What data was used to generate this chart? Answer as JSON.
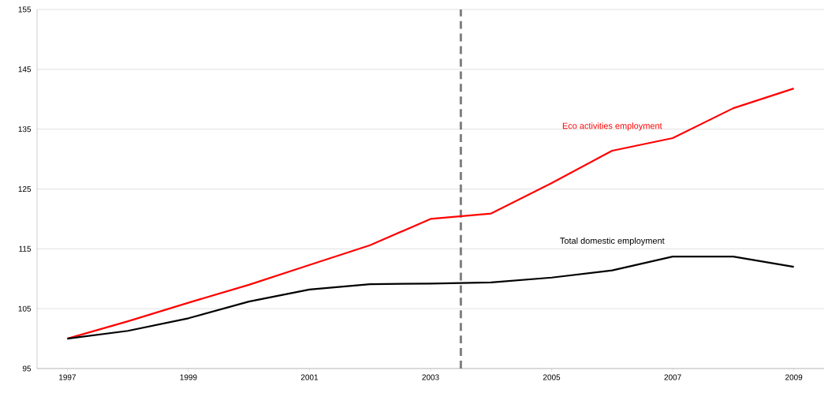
{
  "chart_data": {
    "type": "line",
    "x": [
      1997,
      1998,
      1999,
      2000,
      2001,
      2002,
      2003,
      2004,
      2005,
      2006,
      2007,
      2008,
      2009
    ],
    "series": [
      {
        "name": "Eco activities employment",
        "color": "#ff0000",
        "values": [
          100,
          102.9,
          106,
          109,
          112.3,
          115.6,
          120,
          120.9,
          126,
          131.4,
          133.5,
          138.5,
          141.8
        ]
      },
      {
        "name": "Total domestic employment",
        "color": "#000000",
        "values": [
          100,
          101.3,
          103.4,
          106.2,
          108.2,
          109.1,
          109.2,
          109.4,
          110.2,
          111.4,
          113.7,
          113.7,
          112
        ]
      }
    ],
    "xlim": [
      1996.5,
      2009.5
    ],
    "xticks": [
      1997,
      1999,
      2001,
      2003,
      2005,
      2007,
      2009
    ],
    "ylim": [
      95,
      155
    ],
    "yticks": [
      95,
      105,
      115,
      125,
      135,
      145,
      155
    ],
    "grid": "y",
    "legend": false,
    "marker": "none",
    "line_style": "solid",
    "ref_lines": [
      {
        "axis": "x",
        "value": 2003.5,
        "color": "#808080",
        "line_style": "dashed"
      }
    ]
  }
}
